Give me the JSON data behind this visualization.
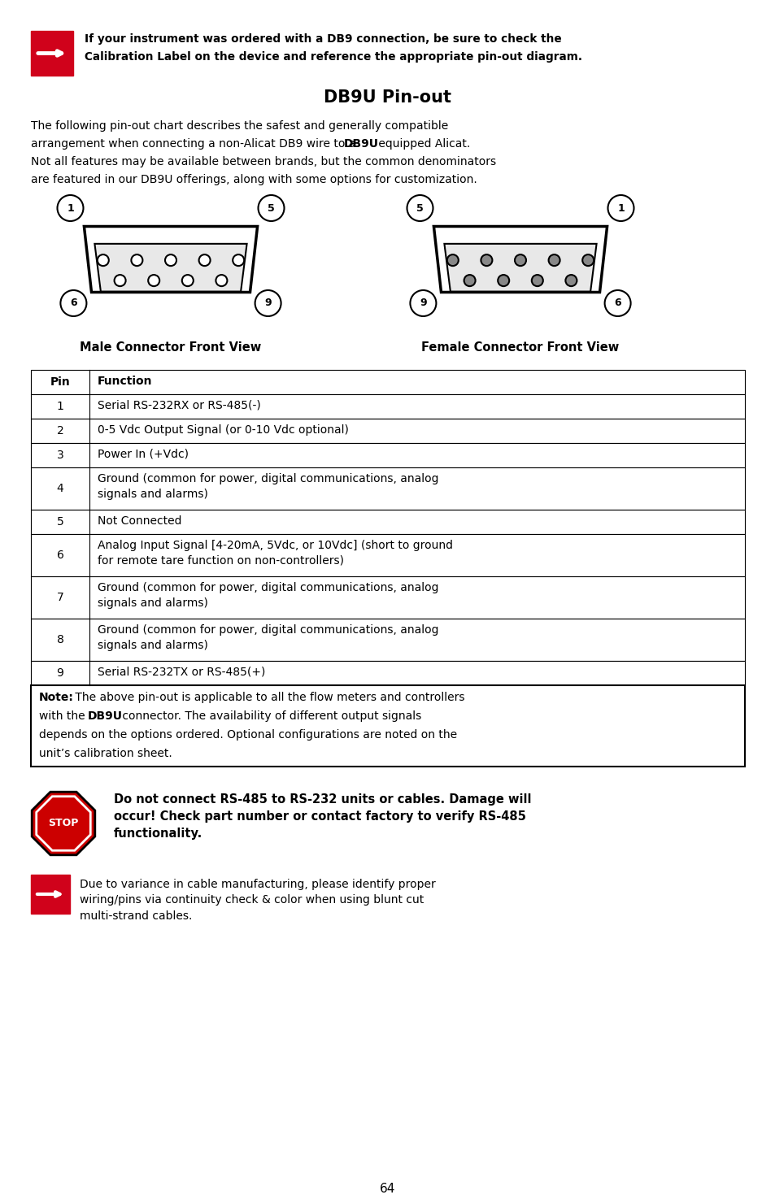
{
  "page_bg": "#ffffff",
  "top_note_text1": "If your instrument was ordered with a DB9 connection, be sure to check the",
  "top_note_text2": "Calibration Label on the device and reference the appropriate pin-out diagram.",
  "title": "DB9U Pin-out",
  "intro1": "The following pin-out chart describes the safest and generally compatible",
  "intro2a": "arrangement when connecting a non-Alicat DB9 wire to a ",
  "intro2b": "DB9U",
  "intro2c": " equipped Alicat.",
  "intro3": "Not all features may be available between brands, but the common denominators",
  "intro4": "are featured in our DB9U offerings, along with some options for customization.",
  "male_label": "Male Connector Front View",
  "female_label": "Female Connector Front View",
  "table_rows": [
    [
      "Pin",
      "Function",
      true
    ],
    [
      "1",
      "Serial RS-232RX or RS-485(-)",
      false
    ],
    [
      "2",
      "0-5 Vdc Output Signal (or 0-10 Vdc optional)",
      false
    ],
    [
      "3",
      "Power In (+Vdc)",
      false
    ],
    [
      "4",
      "Ground (common for power, digital communications, analog\nsignals and alarms)",
      false
    ],
    [
      "5",
      "Not Connected",
      false
    ],
    [
      "6",
      "Analog Input Signal [4-20mA, 5Vdc, or 10Vdc] (short to ground\nfor remote tare function on non-controllers)",
      false
    ],
    [
      "7",
      "Ground (common for power, digital communications, analog\nsignals and alarms)",
      false
    ],
    [
      "8",
      "Ground (common for power, digital communications, analog\nsignals and alarms)",
      false
    ],
    [
      "9",
      "Serial RS-232TX or RS-485(+)",
      false
    ]
  ],
  "note_bold": "Note:",
  "note_rest1": " The above pin-out is applicable to all the flow meters and controllers",
  "note_rest2": "with the ",
  "note_db9u": "DB9U",
  "note_rest3": " connector. The availability of different output signals",
  "note_rest4": "depends on the options ordered. Optional configurations are noted on the",
  "note_rest5": "unit’s calibration sheet.",
  "stop_text": "Do not connect RS-485 to RS-232 units or cables. Damage will\noccur! Check part number or contact factory to verify RS-485\nfunctionality.",
  "arrow2_text": "Due to variance in cable manufacturing, please identify proper\nwiring/pins via continuity check & color when using blunt cut\nmulti-strand cables.",
  "page_number": "64",
  "red_color": "#d0021b",
  "black": "#000000",
  "white": "#ffffff"
}
